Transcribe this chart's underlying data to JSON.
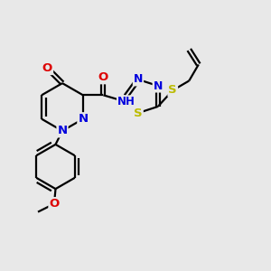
{
  "bg_color": "#e8e8e8",
  "bond_color": "#000000",
  "bond_width": 1.6,
  "atom_colors": {
    "N": "#0000dd",
    "O": "#dd0000",
    "S": "#bbbb00",
    "C": "#000000"
  },
  "font_size_atom": 9.5
}
